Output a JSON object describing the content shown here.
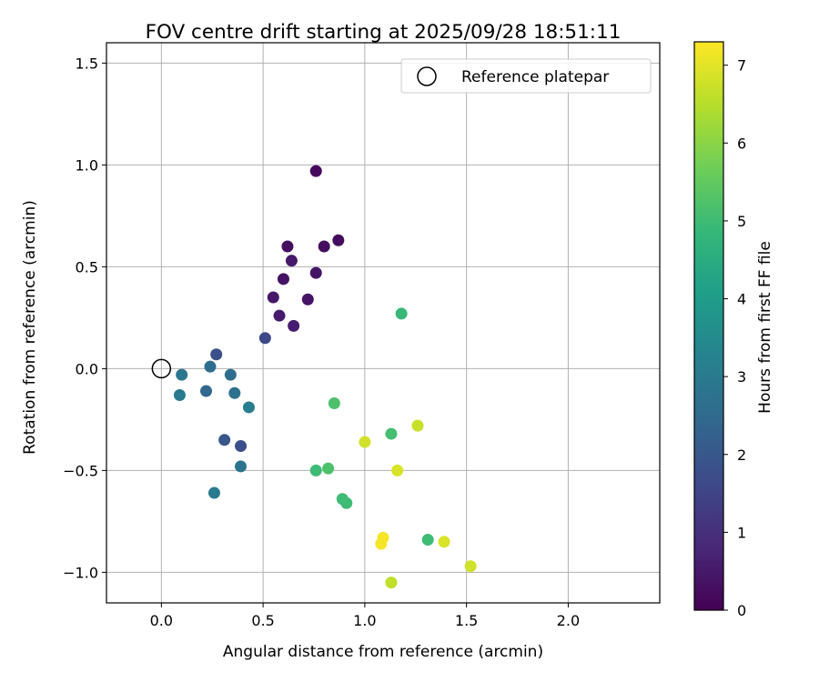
{
  "chart_data": {
    "type": "scatter",
    "title": "FOV centre drift starting at 2025/09/28 18:51:11",
    "xlabel": "Angular distance from reference (arcmin)",
    "ylabel": "Rotation from reference (arcmin)",
    "xlim": [
      -0.27,
      2.45
    ],
    "ylim": [
      -1.15,
      1.6
    ],
    "xticks": [
      0.0,
      0.5,
      1.0,
      1.5,
      2.0
    ],
    "xtick_labels": [
      "0.0",
      "0.5",
      "1.0",
      "1.5",
      "2.0"
    ],
    "yticks": [
      -1.0,
      -0.5,
      0.0,
      0.5,
      1.0,
      1.5
    ],
    "ytick_labels": [
      "−1.0",
      "−0.5",
      "0.0",
      "0.5",
      "1.0",
      "1.5"
    ],
    "grid": true,
    "legend": {
      "position": "top-right",
      "entries": [
        "Reference platepar"
      ]
    },
    "reference_point": {
      "x": 0.0,
      "y": 0.0
    },
    "colorbar": {
      "label": "Hours from first FF file",
      "range": [
        0,
        7.3
      ],
      "ticks": [
        0,
        1,
        2,
        3,
        4,
        5,
        6,
        7
      ],
      "tick_labels": [
        "0",
        "1",
        "2",
        "3",
        "4",
        "5",
        "6",
        "7"
      ],
      "colormap": [
        "#440154",
        "#482878",
        "#3e4989",
        "#31688e",
        "#26828e",
        "#1f9e89",
        "#35b779",
        "#6ece58",
        "#b5de2b",
        "#fde725"
      ]
    },
    "points": [
      {
        "x": 0.76,
        "y": 0.97,
        "h": 0.15
      },
      {
        "x": 0.87,
        "y": 0.63,
        "h": 0.2
      },
      {
        "x": 0.8,
        "y": 0.6,
        "h": 0.25
      },
      {
        "x": 0.62,
        "y": 0.6,
        "h": 0.3
      },
      {
        "x": 0.64,
        "y": 0.53,
        "h": 0.5
      },
      {
        "x": 0.76,
        "y": 0.47,
        "h": 0.4
      },
      {
        "x": 0.6,
        "y": 0.44,
        "h": 0.35
      },
      {
        "x": 0.55,
        "y": 0.35,
        "h": 0.45
      },
      {
        "x": 0.72,
        "y": 0.34,
        "h": 0.4
      },
      {
        "x": 0.58,
        "y": 0.26,
        "h": 0.55
      },
      {
        "x": 0.65,
        "y": 0.21,
        "h": 0.6
      },
      {
        "x": 0.51,
        "y": 0.15,
        "h": 1.6
      },
      {
        "x": 0.27,
        "y": 0.07,
        "h": 1.8
      },
      {
        "x": 0.24,
        "y": 0.01,
        "h": 2.6
      },
      {
        "x": 0.1,
        "y": -0.03,
        "h": 2.9
      },
      {
        "x": 0.34,
        "y": -0.03,
        "h": 2.6
      },
      {
        "x": 0.09,
        "y": -0.13,
        "h": 3.0
      },
      {
        "x": 0.22,
        "y": -0.11,
        "h": 2.4
      },
      {
        "x": 0.36,
        "y": -0.12,
        "h": 2.7
      },
      {
        "x": 0.43,
        "y": -0.19,
        "h": 3.1
      },
      {
        "x": 0.31,
        "y": -0.35,
        "h": 2.0
      },
      {
        "x": 0.39,
        "y": -0.38,
        "h": 1.8
      },
      {
        "x": 0.39,
        "y": -0.48,
        "h": 2.8
      },
      {
        "x": 0.26,
        "y": -0.61,
        "h": 3.0
      },
      {
        "x": 1.18,
        "y": 0.27,
        "h": 4.9
      },
      {
        "x": 0.85,
        "y": -0.17,
        "h": 5.2
      },
      {
        "x": 1.13,
        "y": -0.32,
        "h": 5.1
      },
      {
        "x": 0.76,
        "y": -0.5,
        "h": 5.0
      },
      {
        "x": 0.82,
        "y": -0.49,
        "h": 5.2
      },
      {
        "x": 0.89,
        "y": -0.64,
        "h": 5.0
      },
      {
        "x": 0.91,
        "y": -0.66,
        "h": 5.0
      },
      {
        "x": 1.31,
        "y": -0.84,
        "h": 5.0
      },
      {
        "x": 1.26,
        "y": -0.28,
        "h": 6.7
      },
      {
        "x": 1.0,
        "y": -0.36,
        "h": 6.8
      },
      {
        "x": 1.16,
        "y": -0.5,
        "h": 6.9
      },
      {
        "x": 1.09,
        "y": -0.83,
        "h": 7.2
      },
      {
        "x": 1.08,
        "y": -0.86,
        "h": 7.2
      },
      {
        "x": 1.39,
        "y": -0.85,
        "h": 6.9
      },
      {
        "x": 1.52,
        "y": -0.97,
        "h": 6.8
      },
      {
        "x": 1.13,
        "y": -1.05,
        "h": 6.6
      }
    ]
  }
}
